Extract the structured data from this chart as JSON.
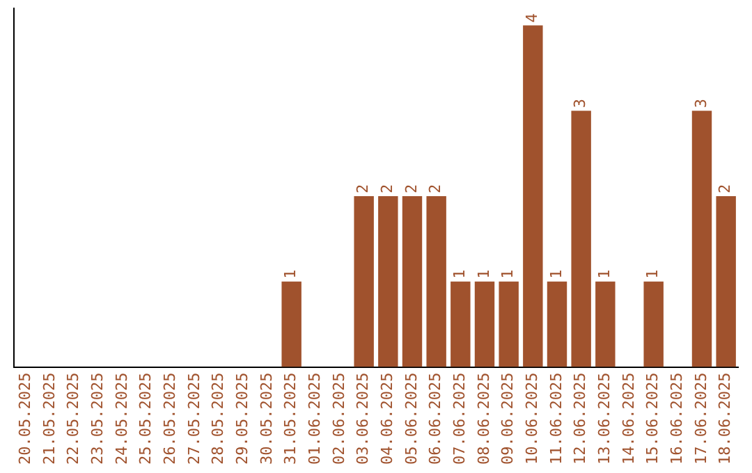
{
  "chart_data": {
    "type": "bar",
    "categories": [
      "20.05.2025",
      "21.05.2025",
      "22.05.2025",
      "23.05.2025",
      "24.05.2025",
      "25.05.2025",
      "26.05.2025",
      "27.05.2025",
      "28.05.2025",
      "29.05.2025",
      "30.05.2025",
      "31.05.2025",
      "01.06.2025",
      "02.06.2025",
      "03.06.2025",
      "04.06.2025",
      "05.06.2025",
      "06.06.2025",
      "07.06.2025",
      "08.06.2025",
      "09.06.2025",
      "10.06.2025",
      "11.06.2025",
      "12.06.2025",
      "13.06.2025",
      "14.06.2025",
      "15.06.2025",
      "16.06.2025",
      "17.06.2025",
      "18.06.2025"
    ],
    "values": [
      0,
      0,
      0,
      0,
      0,
      0,
      0,
      0,
      0,
      0,
      0,
      1,
      0,
      0,
      2,
      2,
      2,
      2,
      1,
      1,
      1,
      4,
      1,
      3,
      1,
      0,
      1,
      0,
      3,
      2
    ],
    "value_labels": [
      null,
      null,
      null,
      null,
      null,
      null,
      null,
      null,
      null,
      null,
      null,
      "1",
      null,
      null,
      "2",
      "2",
      "2",
      "2",
      "1",
      "1",
      "1",
      "4",
      "1",
      "3",
      "1",
      null,
      "1",
      null,
      "3",
      "2"
    ],
    "color": "#a0522d",
    "ylim": [
      0,
      4.2
    ],
    "tick_labels": "x",
    "grid": false,
    "legend": false
  }
}
